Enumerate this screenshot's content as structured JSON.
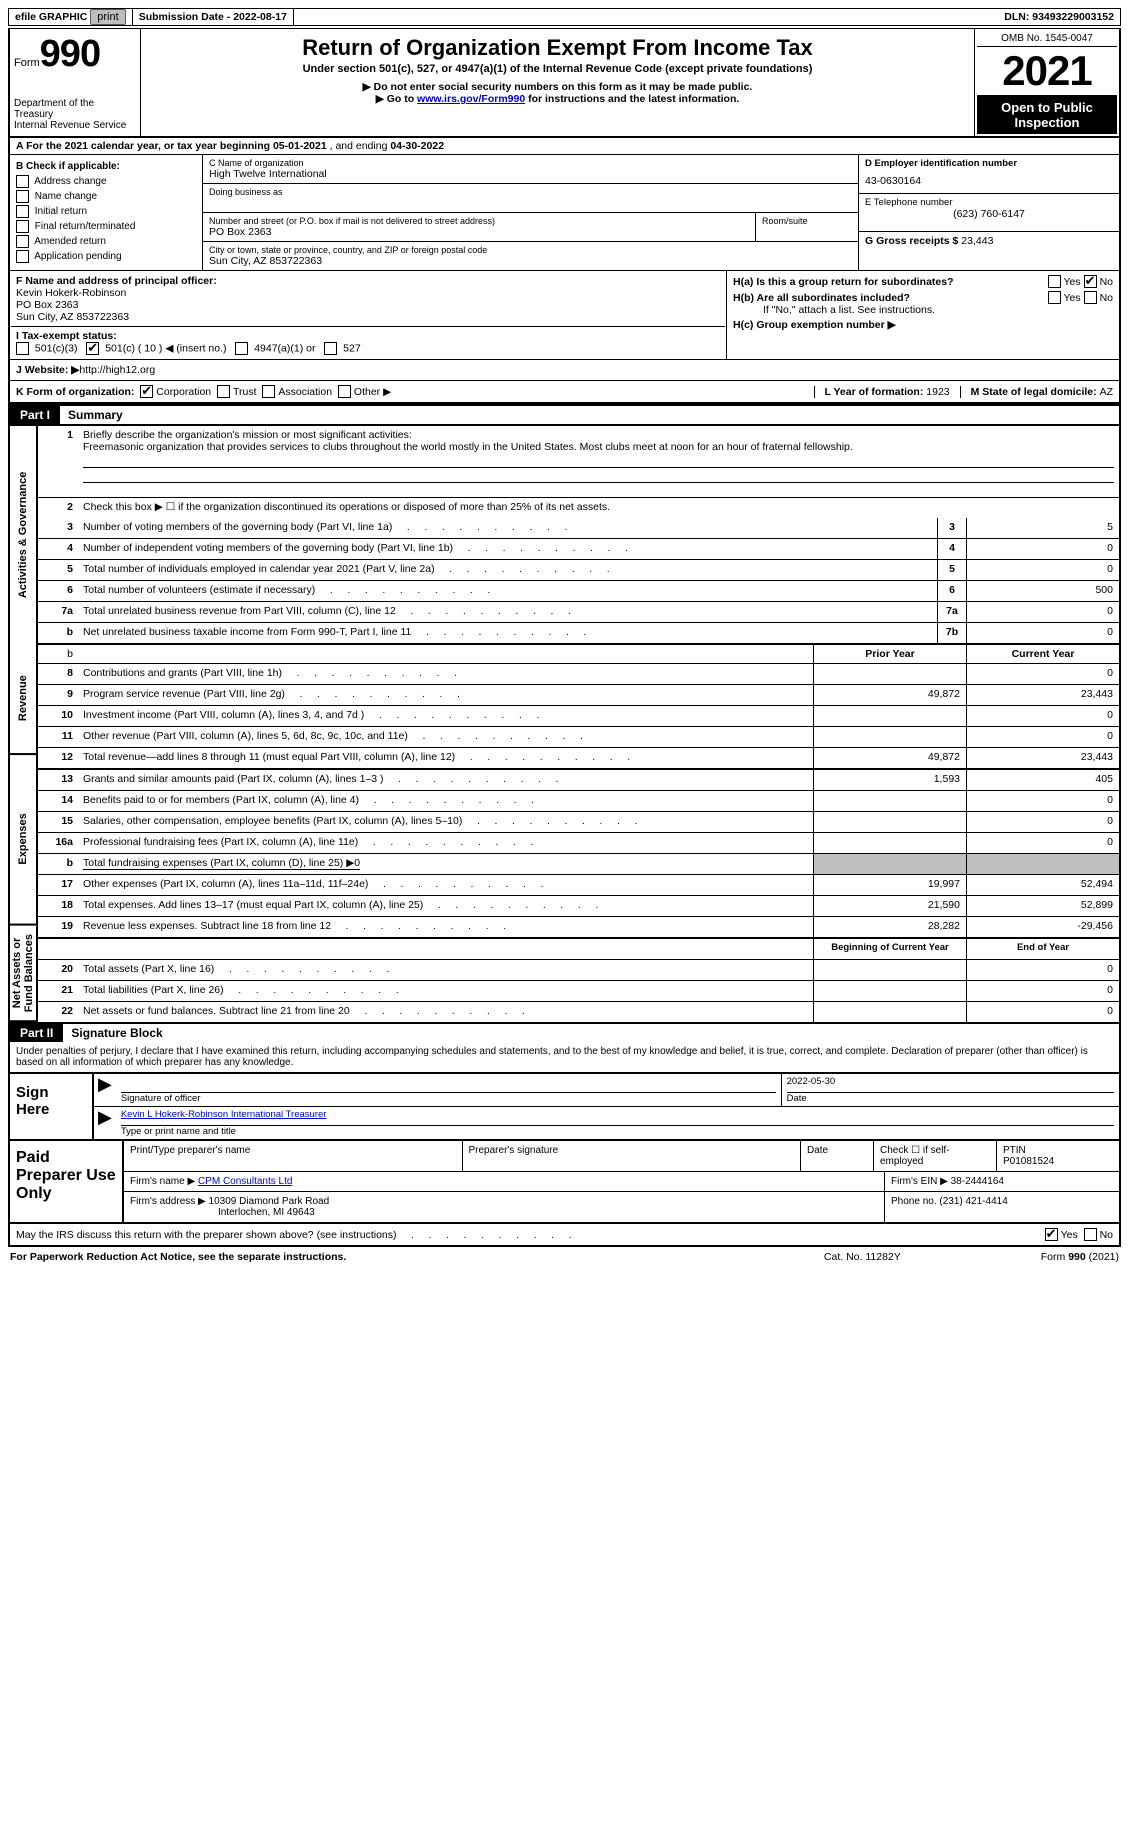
{
  "topbar": {
    "efile": "efile GRAPHIC",
    "print": "print",
    "submission_label": "Submission Date - ",
    "submission_date": "2022-08-17",
    "dln_label": "DLN: ",
    "dln": "93493229003152"
  },
  "header": {
    "form_label": "Form",
    "form_number": "990",
    "title": "Return of Organization Exempt From Income Tax",
    "subtitle": "Under section 501(c), 527, or 4947(a)(1) of the Internal Revenue Code (except private foundations)",
    "warn1": "▶ Do not enter social security numbers on this form as it may be made public.",
    "warn2_pre": "▶ Go to ",
    "warn2_link": "www.irs.gov/Form990",
    "warn2_post": " for instructions and the latest information.",
    "dept": "Department of the Treasury\nInternal Revenue Service",
    "omb": "OMB No. 1545-0047",
    "year": "2021",
    "open": "Open to Public Inspection"
  },
  "rowA": {
    "text_pre": "A For the 2021 calendar year, or tax year beginning ",
    "begin": "05-01-2021",
    "mid": "   , and ending ",
    "end": "04-30-2022"
  },
  "colB": {
    "label": "B Check if applicable:",
    "items": [
      "Address change",
      "Name change",
      "Initial return",
      "Final return/terminated",
      "Amended return",
      "Application pending"
    ]
  },
  "colC": {
    "name_label": "C Name of organization",
    "name": "High Twelve International",
    "dba_label": "Doing business as",
    "addr_label": "Number and street (or P.O. box if mail is not delivered to street address)",
    "addr": "PO Box 2363",
    "room_label": "Room/suite",
    "city_label": "City or town, state or province, country, and ZIP or foreign postal code",
    "city": "Sun City, AZ  853722363"
  },
  "colD": {
    "ein_label": "D Employer identification number",
    "ein": "43-0630164",
    "phone_label": "E Telephone number",
    "phone": "(623) 760-6147",
    "gross_label": "G Gross receipts $ ",
    "gross": "23,443"
  },
  "sectF": {
    "label": "F  Name and address of principal officer:",
    "name": "Kevin Hokerk-Robinson",
    "addr1": "PO Box 2363",
    "addr2": "Sun City, AZ  853722363"
  },
  "sectH": {
    "ha_label": "H(a)  Is this a group return for subordinates?",
    "yes": "Yes",
    "no": "No",
    "hb_label": "H(b)  Are all subordinates included?",
    "hb_note": "If \"No,\" attach a list. See instructions.",
    "hc_label": "H(c)  Group exemption number ▶"
  },
  "rowI": {
    "label": "I    Tax-exempt status:",
    "opts": [
      "501(c)(3)",
      "501(c) ( 10 ) ◀ (insert no.)",
      "4947(a)(1) or",
      "527"
    ],
    "checked_index": 1
  },
  "rowJ": {
    "label": "J   Website: ▶  ",
    "url": "http://high12.org"
  },
  "rowK": {
    "label": "K Form of organization:",
    "opts": [
      "Corporation",
      "Trust",
      "Association",
      "Other ▶"
    ],
    "checked_index": 0,
    "l_label": "L Year of formation: ",
    "l_val": "1923",
    "m_label": "M State of legal domicile: ",
    "m_val": "AZ"
  },
  "part1": {
    "part": "Part I",
    "title": "Summary",
    "side_labels": [
      "Activities & Governance",
      "Revenue",
      "Expenses",
      "Net Assets or Fund Balances"
    ],
    "mission_label": "Briefly describe the organization's mission or most significant activities:",
    "mission": "Freemasonic organization that provides services to clubs throughout the world mostly in the United States. Most clubs meet at noon for an hour of fraternal fellowship.",
    "line2": "Check this box ▶ ☐  if the organization discontinued its operations or disposed of more than 25% of its net assets.",
    "col_headers": [
      "Prior Year",
      "Current Year"
    ],
    "col_headers2": [
      "Beginning of Current Year",
      "End of Year"
    ],
    "rows_gov": [
      {
        "n": "3",
        "d": "Number of voting members of the governing body (Part VI, line 1a)",
        "box": "3",
        "v": "5"
      },
      {
        "n": "4",
        "d": "Number of independent voting members of the governing body (Part VI, line 1b)",
        "box": "4",
        "v": "0"
      },
      {
        "n": "5",
        "d": "Total number of individuals employed in calendar year 2021 (Part V, line 2a)",
        "box": "5",
        "v": "0"
      },
      {
        "n": "6",
        "d": "Total number of volunteers (estimate if necessary)",
        "box": "6",
        "v": "500"
      },
      {
        "n": "7a",
        "d": "Total unrelated business revenue from Part VIII, column (C), line 12",
        "box": "7a",
        "v": "0"
      },
      {
        "n": "b",
        "d": "Net unrelated business taxable income from Form 990-T, Part I, line 11",
        "box": "7b",
        "v": "0"
      }
    ],
    "rows_rev": [
      {
        "n": "8",
        "d": "Contributions and grants (Part VIII, line 1h)",
        "p": "",
        "c": "0"
      },
      {
        "n": "9",
        "d": "Program service revenue (Part VIII, line 2g)",
        "p": "49,872",
        "c": "23,443"
      },
      {
        "n": "10",
        "d": "Investment income (Part VIII, column (A), lines 3, 4, and 7d )",
        "p": "",
        "c": "0"
      },
      {
        "n": "11",
        "d": "Other revenue (Part VIII, column (A), lines 5, 6d, 8c, 9c, 10c, and 11e)",
        "p": "",
        "c": "0"
      },
      {
        "n": "12",
        "d": "Total revenue—add lines 8 through 11 (must equal Part VIII, column (A), line 12)",
        "p": "49,872",
        "c": "23,443"
      }
    ],
    "rows_exp": [
      {
        "n": "13",
        "d": "Grants and similar amounts paid (Part IX, column (A), lines 1–3 )",
        "p": "1,593",
        "c": "405"
      },
      {
        "n": "14",
        "d": "Benefits paid to or for members (Part IX, column (A), line 4)",
        "p": "",
        "c": "0"
      },
      {
        "n": "15",
        "d": "Salaries, other compensation, employee benefits (Part IX, column (A), lines 5–10)",
        "p": "",
        "c": "0"
      },
      {
        "n": "16a",
        "d": "Professional fundraising fees (Part IX, column (A), line 11e)",
        "p": "",
        "c": "0"
      },
      {
        "n": "b",
        "d": "Total fundraising expenses (Part IX, column (D), line 25) ▶0",
        "grey": true
      },
      {
        "n": "17",
        "d": "Other expenses (Part IX, column (A), lines 11a–11d, 11f–24e)",
        "p": "19,997",
        "c": "52,494"
      },
      {
        "n": "18",
        "d": "Total expenses. Add lines 13–17 (must equal Part IX, column (A), line 25)",
        "p": "21,590",
        "c": "52,899"
      },
      {
        "n": "19",
        "d": "Revenue less expenses. Subtract line 18 from line 12",
        "p": "28,282",
        "c": "-29,456"
      }
    ],
    "rows_net": [
      {
        "n": "20",
        "d": "Total assets (Part X, line 16)",
        "p": "",
        "c": "0"
      },
      {
        "n": "21",
        "d": "Total liabilities (Part X, line 26)",
        "p": "",
        "c": "0"
      },
      {
        "n": "22",
        "d": "Net assets or fund balances. Subtract line 21 from line 20",
        "p": "",
        "c": "0"
      }
    ]
  },
  "part2": {
    "part": "Part II",
    "title": "Signature Block",
    "decl": "Under penalties of perjury, I declare that I have examined this return, including accompanying schedules and statements, and to the best of my knowledge and belief, it is true, correct, and complete. Declaration of preparer (other than officer) is based on all information of which preparer has any knowledge."
  },
  "sign": {
    "label": "Sign Here",
    "sig_label": "Signature of officer",
    "date": "2022-05-30",
    "date_label": "Date",
    "name": "Kevin L Hokerk-Robinson  International Treasurer",
    "name_label": "Type or print name and title"
  },
  "paid": {
    "label": "Paid Preparer Use Only",
    "print_label": "Print/Type preparer's name",
    "sig_label": "Preparer's signature",
    "date_label": "Date",
    "check_label": "Check ☐ if self-employed",
    "ptin_label": "PTIN",
    "ptin": "P01081524",
    "firm_name_label": "Firm's name      ▶ ",
    "firm_name": "CPM Consultants Ltd",
    "firm_ein_label": "Firm's EIN ▶ ",
    "firm_ein": "38-2444164",
    "firm_addr_label": "Firm's address ▶ ",
    "firm_addr1": "10309 Diamond Park Road",
    "firm_addr2": "Interlochen, MI  49643",
    "phone_label": "Phone no. ",
    "phone": "(231) 421-4414"
  },
  "footer": {
    "discuss": "May the IRS discuss this return with the preparer shown above? (see instructions)",
    "yes": "Yes",
    "no": "No",
    "paperwork": "For Paperwork Reduction Act Notice, see the separate instructions.",
    "cat": "Cat. No. 11282Y",
    "form": "Form 990 (2021)"
  }
}
